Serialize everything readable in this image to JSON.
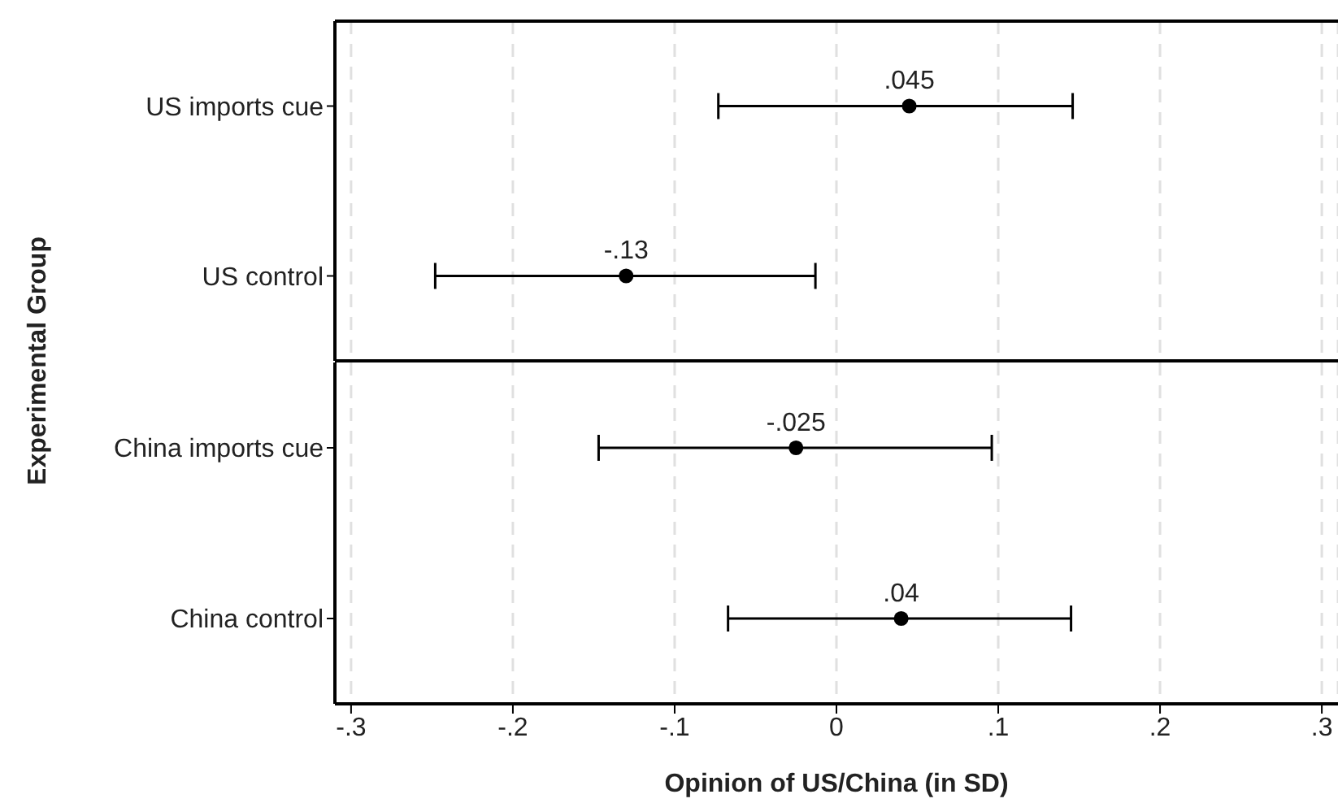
{
  "chart_data": [
    {
      "type": "scatter",
      "orientation": "horizontal",
      "ylabel": "Experimental Group",
      "tick_labels": "y",
      "categories": [
        "US imports cue",
        "US control"
      ],
      "values": [
        0.045,
        -0.13
      ],
      "value_labels": [
        ".045",
        "-.13"
      ],
      "errors": [
        [
          -0.073,
          0.146
        ],
        [
          -0.248,
          -0.013
        ]
      ],
      "color": "#000000",
      "marker": "circle",
      "grid": "x",
      "xlim": [
        -0.31,
        0.31
      ],
      "xticks": [
        {
          "value": -0.3,
          "label": null
        },
        {
          "value": -0.2,
          "label": null
        },
        {
          "value": -0.1,
          "label": null
        },
        {
          "value": 0,
          "label": null
        },
        {
          "value": 0.1,
          "label": null
        },
        {
          "value": 0.2,
          "label": null
        },
        {
          "value": 0.3,
          "label": null
        }
      ]
    },
    {
      "type": "scatter",
      "orientation": "horizontal",
      "xlabel": "Opinion of US/China (in SD)",
      "categories": [
        "China imports cue",
        "China control"
      ],
      "values": [
        -0.025,
        0.04
      ],
      "value_labels": [
        "-.025",
        ".04"
      ],
      "errors": [
        [
          -0.147,
          0.096
        ],
        [
          -0.067,
          0.145
        ]
      ],
      "color": "#000000",
      "marker": "circle",
      "grid": "x",
      "xlim": [
        -0.31,
        0.31
      ],
      "xticks": [
        {
          "value": -0.3,
          "label": "-.3"
        },
        {
          "value": -0.2,
          "label": "-.2"
        },
        {
          "value": -0.1,
          "label": "-.1"
        },
        0,
        {
          "value": 0.1,
          "label": ".1"
        },
        {
          "value": 0.2,
          "label": ".2"
        },
        {
          "value": 0.3,
          "label": ".3"
        }
      ]
    }
  ]
}
